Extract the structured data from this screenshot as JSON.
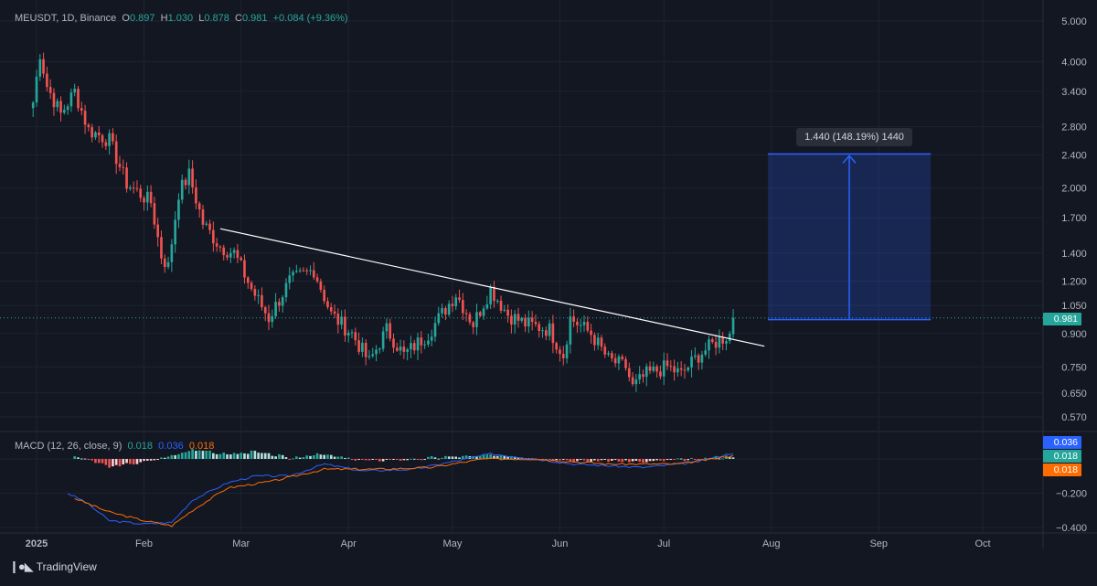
{
  "header": {
    "symbol": "MEUSDT, 1D, Binance",
    "open_label": "O",
    "open": "0.897",
    "high_label": "H",
    "high": "1.030",
    "low_label": "L",
    "low": "0.878",
    "close_label": "C",
    "close": "0.981",
    "change": "+0.084 (+9.36%)"
  },
  "macd_header": {
    "title": "MACD (12, 26, close, 9)",
    "hist": "0.018",
    "macd": "0.036",
    "signal": "0.018"
  },
  "measure_label": "1.440 (148.19%) 1440",
  "price_axis_labels": [
    "5.000",
    "4.000",
    "3.400",
    "2.800",
    "2.400",
    "2.000",
    "1.700",
    "1.400",
    "1.200",
    "1.050",
    "0.900",
    "0.750",
    "0.650",
    "0.570"
  ],
  "macd_axis_labels": [
    "−0.200",
    "−0.400"
  ],
  "time_axis_labels": [
    "2025",
    "Feb",
    "Mar",
    "Apr",
    "May",
    "Jun",
    "Jul",
    "Aug",
    "Sep",
    "Oct"
  ],
  "tags": {
    "last_price": "0.981",
    "macd": "0.036",
    "hist": "0.018",
    "signal": "0.018"
  },
  "colors": {
    "background": "#131722",
    "up": "#26a69a",
    "down": "#ef5350",
    "macd_line": "#2962ff",
    "signal_line": "#ff6d00",
    "measure_fill": "#2962ff",
    "trendline": "#ffffff"
  },
  "brand": "TradingView",
  "chart_data": [
    {
      "type": "candlestick",
      "title": "MEUSDT, 1D, Binance",
      "y_scale": "log",
      "ylim": [
        0.53,
        5.2
      ],
      "x_range": [
        "2024-12-31",
        "2025-10-31"
      ],
      "last": {
        "open": 0.897,
        "high": 1.03,
        "low": 0.878,
        "close": 0.981,
        "change": 0.084,
        "change_pct": 9.36
      },
      "anchors": [
        {
          "date": "2024-12-31",
          "close": 3.2
        },
        {
          "date": "2025-01-02",
          "close": 4.2
        },
        {
          "date": "2025-01-04",
          "close": 3.5
        },
        {
          "date": "2025-01-08",
          "close": 3.0
        },
        {
          "date": "2025-01-12",
          "close": 3.4
        },
        {
          "date": "2025-01-16",
          "close": 2.75
        },
        {
          "date": "2025-01-22",
          "close": 2.6
        },
        {
          "date": "2025-01-27",
          "close": 2.05
        },
        {
          "date": "2025-02-03",
          "close": 1.85
        },
        {
          "date": "2025-02-06",
          "close": 1.38
        },
        {
          "date": "2025-02-08",
          "close": 1.3
        },
        {
          "date": "2025-02-11",
          "close": 1.95
        },
        {
          "date": "2025-02-14",
          "close": 2.15
        },
        {
          "date": "2025-02-18",
          "close": 1.65
        },
        {
          "date": "2025-02-23",
          "close": 1.45
        },
        {
          "date": "2025-02-27",
          "close": 1.4
        },
        {
          "date": "2025-03-04",
          "close": 1.15
        },
        {
          "date": "2025-03-09",
          "close": 0.98
        },
        {
          "date": "2025-03-15",
          "close": 1.2
        },
        {
          "date": "2025-03-22",
          "close": 1.28
        },
        {
          "date": "2025-03-27",
          "close": 1.0
        },
        {
          "date": "2025-04-02",
          "close": 0.9
        },
        {
          "date": "2025-04-07",
          "close": 0.77
        },
        {
          "date": "2025-04-12",
          "close": 0.92
        },
        {
          "date": "2025-04-17",
          "close": 0.8
        },
        {
          "date": "2025-04-24",
          "close": 0.9
        },
        {
          "date": "2025-05-02",
          "close": 1.12
        },
        {
          "date": "2025-05-07",
          "close": 0.95
        },
        {
          "date": "2025-05-12",
          "close": 1.15
        },
        {
          "date": "2025-05-17",
          "close": 1.0
        },
        {
          "date": "2025-05-22",
          "close": 0.95
        },
        {
          "date": "2025-05-29",
          "close": 0.92
        },
        {
          "date": "2025-06-02",
          "close": 0.8
        },
        {
          "date": "2025-06-04",
          "close": 0.98
        },
        {
          "date": "2025-06-10",
          "close": 0.9
        },
        {
          "date": "2025-06-15",
          "close": 0.78
        },
        {
          "date": "2025-06-20",
          "close": 0.75
        },
        {
          "date": "2025-06-22",
          "close": 0.67
        },
        {
          "date": "2025-06-26",
          "close": 0.72
        },
        {
          "date": "2025-07-02",
          "close": 0.75
        },
        {
          "date": "2025-07-06",
          "close": 0.72
        },
        {
          "date": "2025-07-11",
          "close": 0.8
        },
        {
          "date": "2025-07-16",
          "close": 0.86
        },
        {
          "date": "2025-07-20",
          "close": 0.897
        },
        {
          "date": "2025-07-21",
          "close": 0.981
        }
      ],
      "trendline": [
        {
          "date": "2025-02-23",
          "price": 1.6
        },
        {
          "date": "2025-07-30",
          "price": 0.84
        }
      ],
      "measure": {
        "from_date": "2025-07-31",
        "to_date": "2025-09-16",
        "low": 0.972,
        "high": 2.412,
        "change": 1.44,
        "change_pct": 148.19,
        "ticks": 1440
      }
    },
    {
      "type": "line",
      "title": "MACD (12, 26, close, 9)",
      "ylim": [
        -0.42,
        0.1
      ],
      "series": [
        {
          "name": "MACD",
          "color": "#2962ff",
          "anchors": [
            {
              "date": "2025-01-10",
              "value": -0.2
            },
            {
              "date": "2025-01-15",
              "value": -0.25
            },
            {
              "date": "2025-01-22",
              "value": -0.36
            },
            {
              "date": "2025-02-01",
              "value": -0.38
            },
            {
              "date": "2025-02-09",
              "value": -0.37
            },
            {
              "date": "2025-02-15",
              "value": -0.24
            },
            {
              "date": "2025-02-25",
              "value": -0.14
            },
            {
              "date": "2025-03-05",
              "value": -0.1
            },
            {
              "date": "2025-03-15",
              "value": -0.1
            },
            {
              "date": "2025-03-25",
              "value": -0.03
            },
            {
              "date": "2025-04-05",
              "value": -0.07
            },
            {
              "date": "2025-04-20",
              "value": -0.06
            },
            {
              "date": "2025-05-05",
              "value": 0.0
            },
            {
              "date": "2025-05-12",
              "value": 0.03
            },
            {
              "date": "2025-05-25",
              "value": 0.0
            },
            {
              "date": "2025-06-05",
              "value": -0.03
            },
            {
              "date": "2025-06-25",
              "value": -0.05
            },
            {
              "date": "2025-07-10",
              "value": -0.02
            },
            {
              "date": "2025-07-21",
              "value": 0.036
            }
          ]
        },
        {
          "name": "Signal",
          "color": "#ff6d00",
          "anchors": [
            {
              "date": "2025-01-12",
              "value": -0.23
            },
            {
              "date": "2025-01-22",
              "value": -0.31
            },
            {
              "date": "2025-02-01",
              "value": -0.36
            },
            {
              "date": "2025-02-09",
              "value": -0.39
            },
            {
              "date": "2025-02-15",
              "value": -0.3
            },
            {
              "date": "2025-02-25",
              "value": -0.17
            },
            {
              "date": "2025-03-10",
              "value": -0.13
            },
            {
              "date": "2025-03-25",
              "value": -0.06
            },
            {
              "date": "2025-04-10",
              "value": -0.06
            },
            {
              "date": "2025-04-25",
              "value": -0.05
            },
            {
              "date": "2025-05-10",
              "value": 0.0
            },
            {
              "date": "2025-05-25",
              "value": 0.0
            },
            {
              "date": "2025-06-15",
              "value": -0.03
            },
            {
              "date": "2025-07-05",
              "value": -0.03
            },
            {
              "date": "2025-07-21",
              "value": 0.018
            }
          ]
        }
      ],
      "histogram_last": 0.018
    }
  ]
}
